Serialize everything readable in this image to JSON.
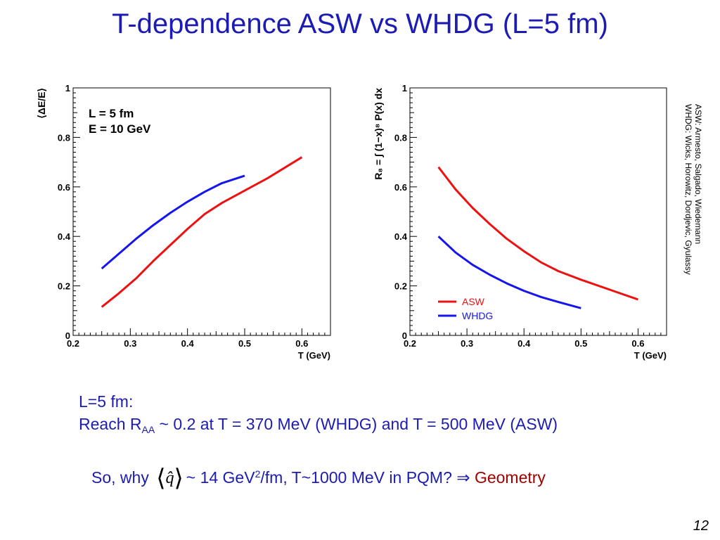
{
  "slide": {
    "title": "T-dependence ASW vs WHDG (L=5 fm)",
    "credits": [
      "ASW: Armesto, Salgado, Wiedemann",
      "WHDG: Wicks, Horowitz, Dordjevic, Gyulassy"
    ],
    "note_line1": "L=5 fm:",
    "note_line2_pre": "Reach R",
    "note_line2_sub": "AA",
    "note_line2_post": " ~ 0.2 at T = 370 MeV (WHDG) and T = 500 MeV (ASW)",
    "note_line3_pre": "So, why",
    "qhat_symbol": "q̂",
    "note_line3_mid": "~ 14 GeV",
    "note_line3_sup": "2",
    "note_line3_post": "/fm, T~1000 MeV in PQM?",
    "implies_symbol": "⇒",
    "geometry": "Geometry",
    "page_number": "12",
    "colors": {
      "title": "#1c1cb4",
      "asw": "#ee1111",
      "whdg": "#1515ee",
      "geometry": "#a40000"
    }
  },
  "chart_data": [
    {
      "type": "line",
      "ylabel": "⟨ΔE/E⟩",
      "xlabel": "T (GeV)",
      "xlim": [
        0.2,
        0.65
      ],
      "ylim": [
        0,
        1
      ],
      "xticks": [
        "0.2",
        "0.3",
        "0.4",
        "0.5",
        "0.6"
      ],
      "yticks": [
        "0",
        "0.2",
        "0.4",
        "0.6",
        "0.8",
        "1"
      ],
      "annotations": [
        "L = 5 fm",
        "E = 10 GeV"
      ],
      "series": [
        {
          "color": "#ee1111",
          "x": [
            0.25,
            0.28,
            0.31,
            0.34,
            0.37,
            0.4,
            0.43,
            0.46,
            0.5,
            0.54,
            0.6
          ],
          "y": [
            0.115,
            0.17,
            0.23,
            0.3,
            0.365,
            0.43,
            0.49,
            0.535,
            0.585,
            0.635,
            0.72
          ]
        },
        {
          "color": "#1515ee",
          "x": [
            0.25,
            0.28,
            0.31,
            0.34,
            0.37,
            0.4,
            0.43,
            0.46,
            0.5
          ],
          "y": [
            0.27,
            0.33,
            0.39,
            0.445,
            0.495,
            0.54,
            0.58,
            0.615,
            0.645
          ]
        }
      ]
    },
    {
      "type": "line",
      "ylabel": "R₈ = ∫ (1−x)⁸ P(x) dx",
      "xlabel": "T (GeV)",
      "xlim": [
        0.2,
        0.65
      ],
      "ylim": [
        0,
        1
      ],
      "xticks": [
        "0.2",
        "0.3",
        "0.4",
        "0.5",
        "0.6"
      ],
      "yticks": [
        "0",
        "0.2",
        "0.4",
        "0.6",
        "0.8",
        "1"
      ],
      "legend": {
        "placement": "lower-left-center",
        "entries": [
          "ASW",
          "WHDG"
        ]
      },
      "series": [
        {
          "name": "ASW",
          "color": "#ee1111",
          "x": [
            0.25,
            0.28,
            0.31,
            0.34,
            0.37,
            0.4,
            0.43,
            0.46,
            0.5,
            0.55,
            0.6
          ],
          "y": [
            0.68,
            0.59,
            0.515,
            0.45,
            0.39,
            0.34,
            0.295,
            0.26,
            0.225,
            0.185,
            0.145
          ]
        },
        {
          "name": "WHDG",
          "color": "#1515ee",
          "x": [
            0.25,
            0.28,
            0.31,
            0.34,
            0.37,
            0.4,
            0.43,
            0.46,
            0.5
          ],
          "y": [
            0.4,
            0.335,
            0.285,
            0.245,
            0.21,
            0.18,
            0.155,
            0.135,
            0.11
          ]
        }
      ]
    }
  ]
}
